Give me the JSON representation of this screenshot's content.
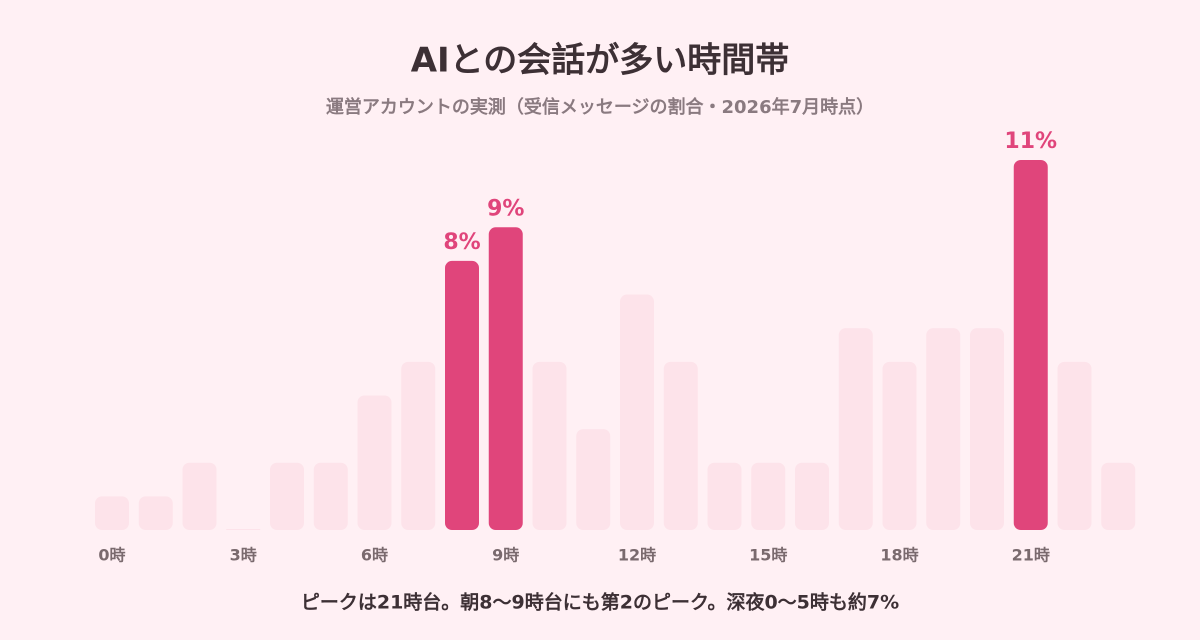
{
  "chart_data": {
    "type": "bar",
    "title": "AIとの会話が多い時間帯",
    "subtitle": "運営アカウントの実測（受信メッセージの割合・2026年7月時点）",
    "annotation": "ピークは21時台。朝8〜9時台にも第2のピーク。深夜0〜5時も約7%",
    "categories": [
      "0時",
      null,
      null,
      "3時",
      null,
      null,
      "6時",
      null,
      null,
      "9時",
      null,
      null,
      "12時",
      null,
      null,
      "15時",
      null,
      null,
      "18時",
      null,
      null,
      "21時",
      null,
      null
    ],
    "values": [
      1,
      1,
      2,
      0,
      2,
      2,
      4,
      5,
      8,
      9,
      5,
      3,
      7,
      5,
      2,
      2,
      2,
      6,
      5,
      6,
      6,
      11,
      5,
      2
    ],
    "value_labels": [
      null,
      null,
      null,
      null,
      null,
      null,
      null,
      null,
      "8%",
      "9%",
      null,
      null,
      null,
      null,
      null,
      null,
      null,
      null,
      null,
      null,
      null,
      "11%",
      null,
      null
    ],
    "colors": [
      "#fde3ea",
      "#fde3ea",
      "#fde3ea",
      "#fde3ea",
      "#fde3ea",
      "#fde3ea",
      "#fde3ea",
      "#fde3ea",
      "#e0457b",
      "#e0457b",
      "#fde3ea",
      "#fde3ea",
      "#fde3ea",
      "#fde3ea",
      "#fde3ea",
      "#fde3ea",
      "#fde3ea",
      "#fde3ea",
      "#fde3ea",
      "#fde3ea",
      "#fde3ea",
      "#e0457b",
      "#fde3ea",
      "#fde3ea"
    ]
  }
}
